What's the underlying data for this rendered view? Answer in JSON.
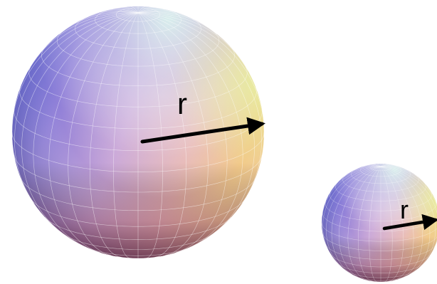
{
  "diagram": {
    "spheres": [
      {
        "name": "large-sphere",
        "radius_label": "r"
      },
      {
        "name": "small-sphere",
        "radius_label": "r"
      }
    ]
  }
}
